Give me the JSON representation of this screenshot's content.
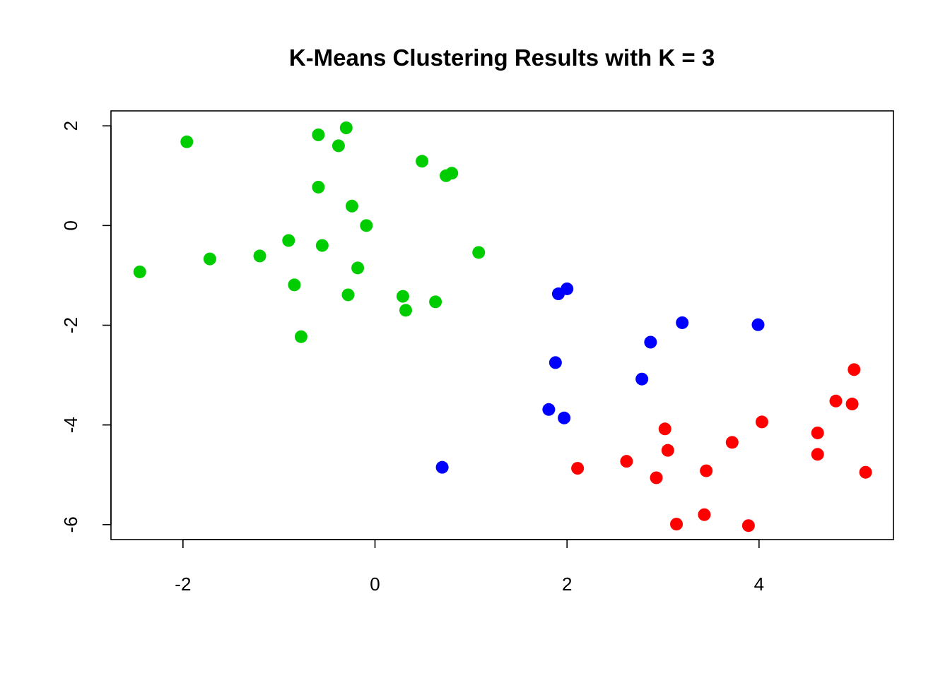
{
  "chart_data": {
    "type": "scatter",
    "title": "K-Means Clustering Results with K = 3",
    "xlabel": "",
    "ylabel": "",
    "xlim": [
      -2.75,
      5.4
    ],
    "ylim": [
      -6.3,
      2.3
    ],
    "x_ticks": [
      -2,
      0,
      2,
      4
    ],
    "y_ticks": [
      -6,
      -4,
      -2,
      0,
      2
    ],
    "grid": false,
    "legend": "none",
    "series": [
      {
        "color": "#00CD00",
        "points": [
          {
            "x": -2.45,
            "y": -0.93
          },
          {
            "x": -1.96,
            "y": 1.68
          },
          {
            "x": -1.72,
            "y": -0.67
          },
          {
            "x": -1.2,
            "y": -0.61
          },
          {
            "x": -0.9,
            "y": -0.3
          },
          {
            "x": -0.84,
            "y": -1.19
          },
          {
            "x": -0.77,
            "y": -2.23
          },
          {
            "x": -0.59,
            "y": 1.82
          },
          {
            "x": -0.59,
            "y": 0.77
          },
          {
            "x": -0.55,
            "y": -0.4
          },
          {
            "x": -0.38,
            "y": 1.6
          },
          {
            "x": -0.3,
            "y": 1.96
          },
          {
            "x": -0.28,
            "y": -1.39
          },
          {
            "x": -0.24,
            "y": 0.39
          },
          {
            "x": -0.18,
            "y": -0.85
          },
          {
            "x": -0.09,
            "y": 0.0
          },
          {
            "x": 0.29,
            "y": -1.42
          },
          {
            "x": 0.32,
            "y": -1.7
          },
          {
            "x": 0.49,
            "y": 1.29
          },
          {
            "x": 0.63,
            "y": -1.53
          },
          {
            "x": 0.74,
            "y": 1.0
          },
          {
            "x": 0.8,
            "y": 1.05
          },
          {
            "x": 1.08,
            "y": -0.54
          }
        ]
      },
      {
        "color": "#0000FF",
        "points": [
          {
            "x": 0.7,
            "y": -4.85
          },
          {
            "x": 1.81,
            "y": -3.69
          },
          {
            "x": 1.88,
            "y": -2.75
          },
          {
            "x": 1.91,
            "y": -1.37
          },
          {
            "x": 1.97,
            "y": -3.86
          },
          {
            "x": 2.0,
            "y": -1.27
          },
          {
            "x": 2.78,
            "y": -3.08
          },
          {
            "x": 2.87,
            "y": -2.34
          },
          {
            "x": 3.2,
            "y": -1.95
          },
          {
            "x": 3.99,
            "y": -1.99
          }
        ]
      },
      {
        "color": "#FF0000",
        "points": [
          {
            "x": 2.11,
            "y": -4.87
          },
          {
            "x": 2.62,
            "y": -4.73
          },
          {
            "x": 2.93,
            "y": -5.06
          },
          {
            "x": 3.02,
            "y": -4.08
          },
          {
            "x": 3.05,
            "y": -4.51
          },
          {
            "x": 3.14,
            "y": -5.99
          },
          {
            "x": 3.43,
            "y": -5.8
          },
          {
            "x": 3.45,
            "y": -4.92
          },
          {
            "x": 3.72,
            "y": -4.35
          },
          {
            "x": 3.89,
            "y": -6.02
          },
          {
            "x": 4.03,
            "y": -3.94
          },
          {
            "x": 4.61,
            "y": -4.16
          },
          {
            "x": 4.61,
            "y": -4.59
          },
          {
            "x": 4.8,
            "y": -3.52
          },
          {
            "x": 4.97,
            "y": -3.58
          },
          {
            "x": 4.99,
            "y": -2.89
          },
          {
            "x": 5.11,
            "y": -4.95
          }
        ]
      }
    ]
  }
}
